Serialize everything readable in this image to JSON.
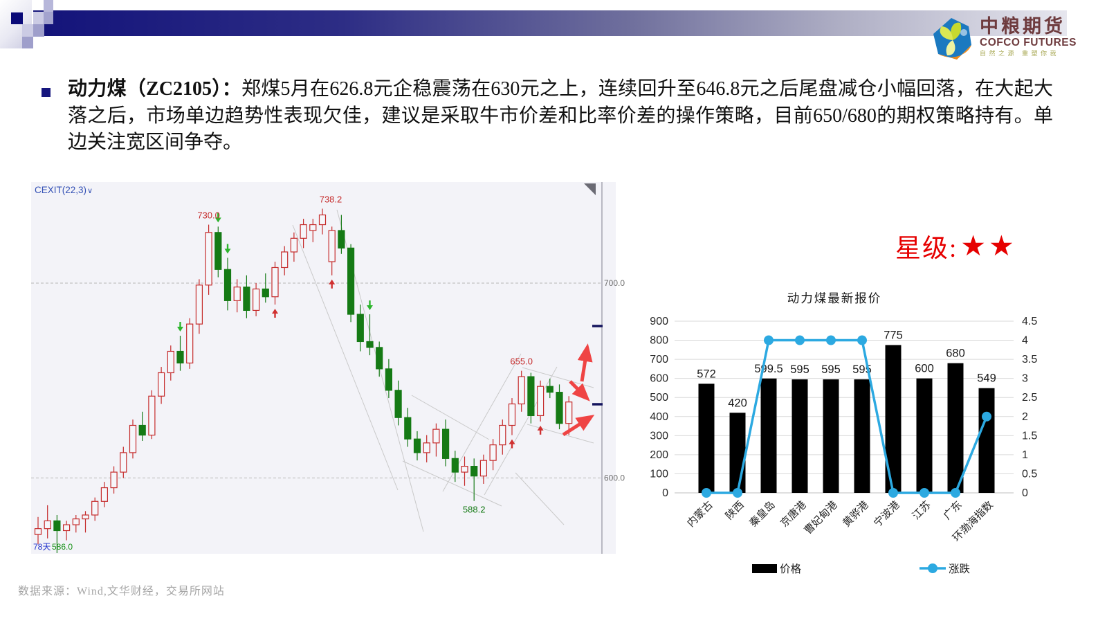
{
  "slide": {
    "logo": {
      "cn": "中粮期货",
      "en": "COFCO FUTURES",
      "tagline": "自然之源 重塑你我"
    },
    "bullet": {
      "lead": "动力煤（ZC2105）：",
      "body": "郑煤5月在626.8元企稳震荡在630元之上，连续回升至646.8元之后尾盘减仓小幅回落，在大起大落之后，市场单边趋势性表现欠佳，建议是采取牛市价差和比率价差的操作策略，目前650/680的期权策略持有。单边关注宽区间争夺。"
    },
    "star": {
      "label": "星级:",
      "stars": "★★",
      "color": "#e60000"
    },
    "source": "数据来源：Wind,文华财经，交易所网站"
  },
  "chart_data": [
    {
      "id": "zc2105-daily-candlestick",
      "type": "candlestick",
      "indicator_label": "CEXIT(22,3)",
      "indicator_dropdown_glyph": "∨",
      "y_axis_ticks": [
        "700.0",
        "600.0"
      ],
      "y_axis_values": [
        700,
        600
      ],
      "up_color": "#c52b2b",
      "down_color": "#157a15",
      "price_labels": [
        {
          "text": "730.0",
          "idx": 18,
          "pos": "above",
          "color": "#c52b2b"
        },
        {
          "text": "738.2",
          "idx": 30,
          "pos": "above",
          "color": "#c52b2b"
        },
        {
          "text": "655.0",
          "idx": 51,
          "pos": "above",
          "color": "#c52b2b"
        },
        {
          "text": "588.2",
          "idx": 46,
          "pos": "below",
          "color": "#157a15"
        }
      ],
      "corner_labels": {
        "days": "78天",
        "price": "586.0"
      },
      "signals": {
        "sell_above_idx": [
          15,
          19,
          20,
          35
        ],
        "buy_below_idx": [
          25,
          31,
          50,
          53
        ]
      },
      "trend_arrows": [
        "up",
        "down-right",
        "up-right"
      ],
      "candles_ohlc": [
        [
          571,
          580,
          566,
          574
        ],
        [
          574,
          586,
          569,
          578
        ],
        [
          578,
          581,
          556,
          573
        ],
        [
          573,
          578,
          568,
          576
        ],
        [
          576,
          581,
          572,
          579
        ],
        [
          579,
          583,
          572,
          581
        ],
        [
          581,
          590,
          578,
          588
        ],
        [
          588,
          598,
          585,
          595
        ],
        [
          595,
          606,
          592,
          603
        ],
        [
          603,
          616,
          600,
          613
        ],
        [
          613,
          630,
          610,
          627
        ],
        [
          627,
          634,
          619,
          622
        ],
        [
          622,
          645,
          620,
          642
        ],
        [
          642,
          657,
          638,
          654
        ],
        [
          654,
          668,
          650,
          665
        ],
        [
          665,
          673,
          655,
          659
        ],
        [
          659,
          682,
          656,
          679
        ],
        [
          679,
          702,
          674,
          699
        ],
        [
          699,
          730,
          694,
          726
        ],
        [
          726,
          729,
          703,
          707
        ],
        [
          707,
          713,
          686,
          691
        ],
        [
          691,
          702,
          685,
          698
        ],
        [
          698,
          704,
          682,
          686
        ],
        [
          686,
          700,
          683,
          697
        ],
        [
          697,
          705,
          690,
          693
        ],
        [
          693,
          711,
          689,
          708
        ],
        [
          708,
          719,
          704,
          716
        ],
        [
          716,
          726,
          711,
          723
        ],
        [
          723,
          733,
          718,
          730
        ],
        [
          727,
          733,
          721,
          730
        ],
        [
          730,
          738.2,
          725,
          735
        ],
        [
          711,
          729,
          704,
          727
        ],
        [
          727,
          735,
          715,
          718
        ],
        [
          718,
          720,
          680,
          684
        ],
        [
          684,
          689,
          665,
          670
        ],
        [
          670,
          684,
          663,
          667
        ],
        [
          667,
          670,
          652,
          656
        ],
        [
          656,
          661,
          641,
          645
        ],
        [
          645,
          650,
          627,
          631
        ],
        [
          631,
          636,
          616,
          620
        ],
        [
          620,
          624,
          609,
          613
        ],
        [
          613,
          622,
          608,
          618
        ],
        [
          618,
          628,
          611,
          625
        ],
        [
          625,
          630,
          606,
          610
        ],
        [
          610,
          614,
          598,
          603
        ],
        [
          603,
          611,
          596,
          606
        ],
        [
          606,
          610,
          588.2,
          601
        ],
        [
          601,
          612,
          597,
          609
        ],
        [
          609,
          620,
          604,
          617
        ],
        [
          617,
          630,
          612,
          627
        ],
        [
          627,
          641,
          622,
          638
        ],
        [
          638,
          655,
          634,
          652
        ],
        [
          652,
          654,
          628,
          632
        ],
        [
          632,
          650,
          629,
          647
        ],
        [
          647,
          651,
          641,
          644
        ],
        [
          644,
          648,
          625,
          628
        ],
        [
          628,
          642,
          622,
          639
        ]
      ]
    },
    {
      "id": "coal-latest-quotes",
      "type": "bar",
      "title": "动力煤最新报价",
      "categories": [
        "内蒙古",
        "陕西",
        "秦皇岛",
        "京唐港",
        "曹妃甸港",
        "黄骅港",
        "宁波港",
        "江苏",
        "广东",
        "环渤海指数"
      ],
      "series": [
        {
          "name": "价格",
          "type": "bar",
          "axis": "left",
          "color": "#000000",
          "values": [
            572,
            420,
            599.5,
            595,
            595,
            595,
            775,
            600,
            680,
            549
          ]
        },
        {
          "name": "涨跌",
          "type": "line",
          "axis": "right",
          "color": "#2ca9e1",
          "values": [
            0,
            0,
            4,
            4,
            4,
            4,
            0,
            0,
            0,
            2
          ]
        }
      ],
      "left_axis": {
        "min": 0,
        "max": 900,
        "step": 100
      },
      "right_axis": {
        "min": 0,
        "max": 4.5,
        "step": 0.5
      },
      "grid": true,
      "legend_position": "bottom"
    }
  ]
}
